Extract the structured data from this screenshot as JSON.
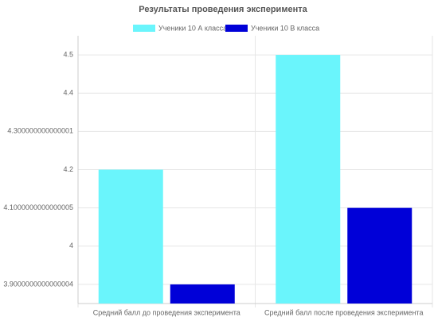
{
  "chart_data": {
    "type": "bar",
    "title": "Результаты проведения эксперимента",
    "categories": [
      "Средний балл до проведения эксперимента",
      "Средний балл после проведения эксперимента"
    ],
    "series": [
      {
        "name": "Ученики 10 А класса",
        "color": "#6af5fc",
        "values": [
          4.2,
          4.5
        ]
      },
      {
        "name": "Ученики 10 В класса",
        "color": "#0000d8",
        "values": [
          3.9,
          4.1
        ]
      }
    ],
    "ylim": [
      3.85,
      4.55
    ],
    "yticks": [
      3.9000000000000004,
      4,
      4.1000000000000005,
      4.2,
      4.300000000000001,
      4.4,
      4.5
    ],
    "grid": true,
    "legend": "top"
  }
}
